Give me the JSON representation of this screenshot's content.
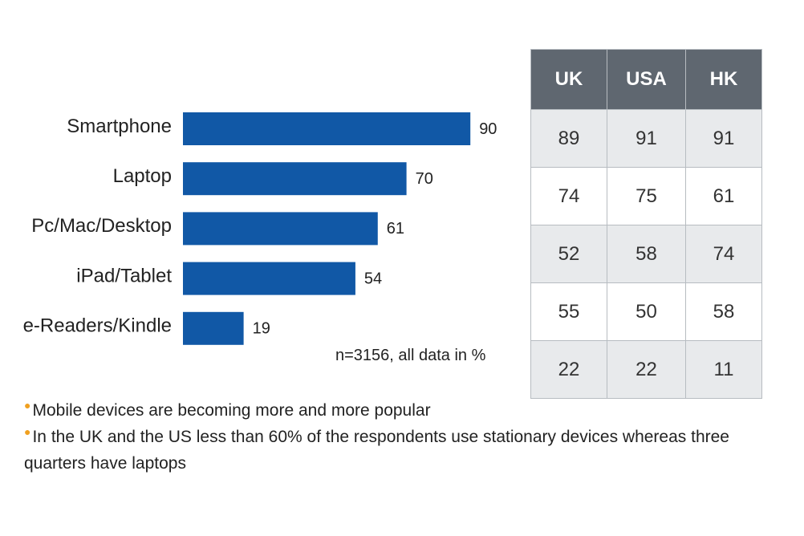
{
  "chart_data": {
    "type": "bar",
    "orientation": "horizontal",
    "categories": [
      "Smartphone",
      "Laptop",
      "Pc/Mac/Desktop",
      "iPad/Tablet",
      "e-Readers/Kindle"
    ],
    "values": [
      90,
      70,
      61,
      54,
      19
    ],
    "bar_color": "#1158a6",
    "note": "n=3156, all data in %",
    "xlim": [
      0,
      100
    ],
    "grid": false
  },
  "table": {
    "headers": [
      "UK",
      "USA",
      "HK"
    ],
    "rows": [
      [
        "89",
        "91",
        "91"
      ],
      [
        "74",
        "75",
        "61"
      ],
      [
        "52",
        "58",
        "74"
      ],
      [
        "55",
        "50",
        "58"
      ],
      [
        "22",
        "22",
        "11"
      ]
    ],
    "header_color": "#5f6770",
    "stripe_color": "#e8eaec"
  },
  "bullets": [
    "Mobile devices are becoming more and more popular",
    "In the UK and the US less than 60% of the respondents use stationary devices whereas three quarters have laptops"
  ],
  "colors": {
    "bullet_marker": "#f0a020"
  }
}
